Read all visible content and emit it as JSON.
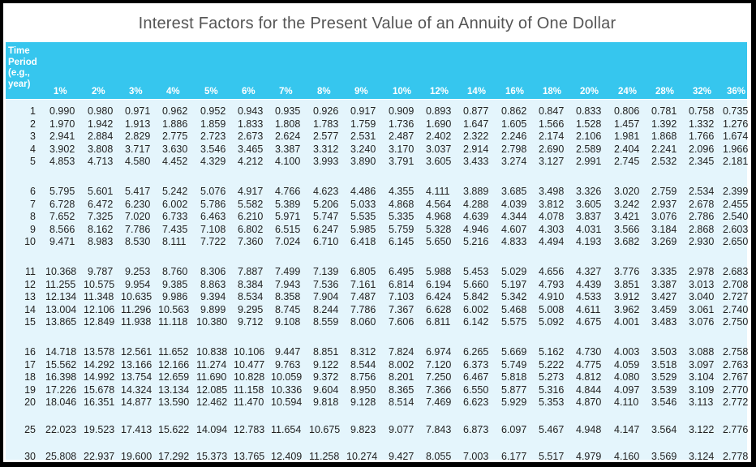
{
  "title": "Interest Factors for the Present Value of an Annuity of One Dollar",
  "header": {
    "time_label_lines": [
      "Time",
      "Period",
      "(e.g.,",
      "year)"
    ],
    "rates": [
      "1%",
      "2%",
      "3%",
      "4%",
      "5%",
      "6%",
      "7%",
      "8%",
      "9%",
      "10%",
      "12%",
      "14%",
      "16%",
      "18%",
      "20%",
      "24%",
      "28%",
      "32%",
      "36%"
    ]
  },
  "groups": [
    [
      {
        "period": "1",
        "values": [
          "0.990",
          "0.980",
          "0.971",
          "0.962",
          "0.952",
          "0.943",
          "0.935",
          "0.926",
          "0.917",
          "0.909",
          "0.893",
          "0.877",
          "0.862",
          "0.847",
          "0.833",
          "0.806",
          "0.781",
          "0.758",
          "0.735"
        ]
      },
      {
        "period": "2",
        "values": [
          "1.970",
          "1.942",
          "1.913",
          "1.886",
          "1.859",
          "1.833",
          "1.808",
          "1.783",
          "1.759",
          "1.736",
          "1.690",
          "1.647",
          "1.605",
          "1.566",
          "1.528",
          "1.457",
          "1.392",
          "1.332",
          "1.276"
        ]
      },
      {
        "period": "3",
        "values": [
          "2.941",
          "2.884",
          "2.829",
          "2.775",
          "2.723",
          "2.673",
          "2.624",
          "2.577",
          "2.531",
          "2.487",
          "2.402",
          "2.322",
          "2.246",
          "2.174",
          "2.106",
          "1.981",
          "1.868",
          "1.766",
          "1.674"
        ]
      },
      {
        "period": "4",
        "values": [
          "3.902",
          "3.808",
          "3.717",
          "3.630",
          "3.546",
          "3.465",
          "3.387",
          "3.312",
          "3.240",
          "3.170",
          "3.037",
          "2.914",
          "2.798",
          "2.690",
          "2.589",
          "2.404",
          "2.241",
          "2.096",
          "1.966"
        ]
      },
      {
        "period": "5",
        "values": [
          "4.853",
          "4.713",
          "4.580",
          "4.452",
          "4.329",
          "4.212",
          "4.100",
          "3.993",
          "3.890",
          "3.791",
          "3.605",
          "3.433",
          "3.274",
          "3.127",
          "2.991",
          "2.745",
          "2.532",
          "2.345",
          "2.181"
        ]
      }
    ],
    [
      {
        "period": "6",
        "values": [
          "5.795",
          "5.601",
          "5.417",
          "5.242",
          "5.076",
          "4.917",
          "4.766",
          "4.623",
          "4.486",
          "4.355",
          "4.111",
          "3.889",
          "3.685",
          "3.498",
          "3.326",
          "3.020",
          "2.759",
          "2.534",
          "2.399"
        ]
      },
      {
        "period": "7",
        "values": [
          "6.728",
          "6.472",
          "6.230",
          "6.002",
          "5.786",
          "5.582",
          "5.389",
          "5.206",
          "5.033",
          "4.868",
          "4.564",
          "4.288",
          "4.039",
          "3.812",
          "3.605",
          "3.242",
          "2.937",
          "2.678",
          "2.455"
        ]
      },
      {
        "period": "8",
        "values": [
          "7.652",
          "7.325",
          "7.020",
          "6.733",
          "6.463",
          "6.210",
          "5.971",
          "5.747",
          "5.535",
          "5.335",
          "4.968",
          "4.639",
          "4.344",
          "4.078",
          "3.837",
          "3.421",
          "3.076",
          "2.786",
          "2.540"
        ]
      },
      {
        "period": "9",
        "values": [
          "8.566",
          "8.162",
          "7.786",
          "7.435",
          "7.108",
          "6.802",
          "6.515",
          "6.247",
          "5.985",
          "5.759",
          "5.328",
          "4.946",
          "4.607",
          "4.303",
          "4.031",
          "3.566",
          "3.184",
          "2.868",
          "2.603"
        ]
      },
      {
        "period": "10",
        "values": [
          "9.471",
          "8.983",
          "8.530",
          "8.111",
          "7.722",
          "7.360",
          "7.024",
          "6.710",
          "6.418",
          "6.145",
          "5.650",
          "5.216",
          "4.833",
          "4.494",
          "4.193",
          "3.682",
          "3.269",
          "2.930",
          "2.650"
        ]
      }
    ],
    [
      {
        "period": "11",
        "values": [
          "10.368",
          "9.787",
          "9.253",
          "8.760",
          "8.306",
          "7.887",
          "7.499",
          "7.139",
          "6.805",
          "6.495",
          "5.988",
          "5.453",
          "5.029",
          "4.656",
          "4.327",
          "3.776",
          "3.335",
          "2.978",
          "2.683"
        ]
      },
      {
        "period": "12",
        "values": [
          "11.255",
          "10.575",
          "9.954",
          "9.385",
          "8.863",
          "8.384",
          "7.943",
          "7.536",
          "7.161",
          "6.814",
          "6.194",
          "5.660",
          "5.197",
          "4.793",
          "4.439",
          "3.851",
          "3.387",
          "3.013",
          "2.708"
        ]
      },
      {
        "period": "13",
        "values": [
          "12.134",
          "11.348",
          "10.635",
          "9.986",
          "9.394",
          "8.534",
          "8.358",
          "7.904",
          "7.487",
          "7.103",
          "6.424",
          "5.842",
          "5.342",
          "4.910",
          "4.533",
          "3.912",
          "3.427",
          "3.040",
          "2.727"
        ]
      },
      {
        "period": "14",
        "values": [
          "13.004",
          "12.106",
          "11.296",
          "10.563",
          "9.899",
          "9.295",
          "8.745",
          "8.244",
          "7.786",
          "7.367",
          "6.628",
          "6.002",
          "5.468",
          "5.008",
          "4.611",
          "3.962",
          "3.459",
          "3.061",
          "2.740"
        ]
      },
      {
        "period": "15",
        "values": [
          "13.865",
          "12.849",
          "11.938",
          "11.118",
          "10.380",
          "9.712",
          "9.108",
          "8.559",
          "8.060",
          "7.606",
          "6.811",
          "6.142",
          "5.575",
          "5.092",
          "4.675",
          "4.001",
          "3.483",
          "3.076",
          "2.750"
        ]
      }
    ],
    [
      {
        "period": "16",
        "values": [
          "14.718",
          "13.578",
          "12.561",
          "11.652",
          "10.838",
          "10.106",
          "9.447",
          "8.851",
          "8.312",
          "7.824",
          "6.974",
          "6.265",
          "5.669",
          "5.162",
          "4.730",
          "4.003",
          "3.503",
          "3.088",
          "2.758"
        ]
      },
      {
        "period": "17",
        "values": [
          "15.562",
          "14.292",
          "13.166",
          "12.166",
          "11.274",
          "10.477",
          "9.763",
          "9.122",
          "8.544",
          "8.002",
          "7.120",
          "6.373",
          "5.749",
          "5.222",
          "4.775",
          "4.059",
          "3.518",
          "3.097",
          "2.763"
        ]
      },
      {
        "period": "18",
        "values": [
          "16.398",
          "14.992",
          "13.754",
          "12.659",
          "11.690",
          "10.828",
          "10.059",
          "9.372",
          "8.756",
          "8.201",
          "7.250",
          "6.467",
          "5.818",
          "5.273",
          "4.812",
          "4.080",
          "3.529",
          "3.104",
          "2.767"
        ]
      },
      {
        "period": "19",
        "values": [
          "17.226",
          "15.678",
          "14.324",
          "13.134",
          "12.085",
          "11.158",
          "10.336",
          "9.604",
          "8.950",
          "8.365",
          "7.366",
          "6.550",
          "5.877",
          "5.316",
          "4.844",
          "4.097",
          "3.539",
          "3.109",
          "2.770"
        ]
      },
      {
        "period": "20",
        "values": [
          "18.046",
          "16.351",
          "14.877",
          "13.590",
          "12.462",
          "11.470",
          "10.594",
          "9.818",
          "9.128",
          "8.514",
          "7.469",
          "6.623",
          "5.929",
          "5.353",
          "4.870",
          "4.110",
          "3.546",
          "3.113",
          "2.772"
        ]
      }
    ],
    [
      {
        "period": "25",
        "values": [
          "22.023",
          "19.523",
          "17.413",
          "15.622",
          "14.094",
          "12.783",
          "11.654",
          "10.675",
          "9.823",
          "9.077",
          "7.843",
          "6.873",
          "6.097",
          "5.467",
          "4.948",
          "4.147",
          "3.564",
          "3.122",
          "2.776"
        ]
      }
    ],
    [
      {
        "period": "30",
        "values": [
          "25.808",
          "22.937",
          "19.600",
          "17.292",
          "15.373",
          "13.765",
          "12.409",
          "11.258",
          "10.274",
          "9.427",
          "8.055",
          "7.003",
          "6.177",
          "5.517",
          "4.979",
          "4.160",
          "3.569",
          "3.124",
          "2.778"
        ]
      }
    ]
  ],
  "colors": {
    "header_band": "#36c6ee",
    "body_bg": "#e4f5fc",
    "title_text": "#555555"
  }
}
